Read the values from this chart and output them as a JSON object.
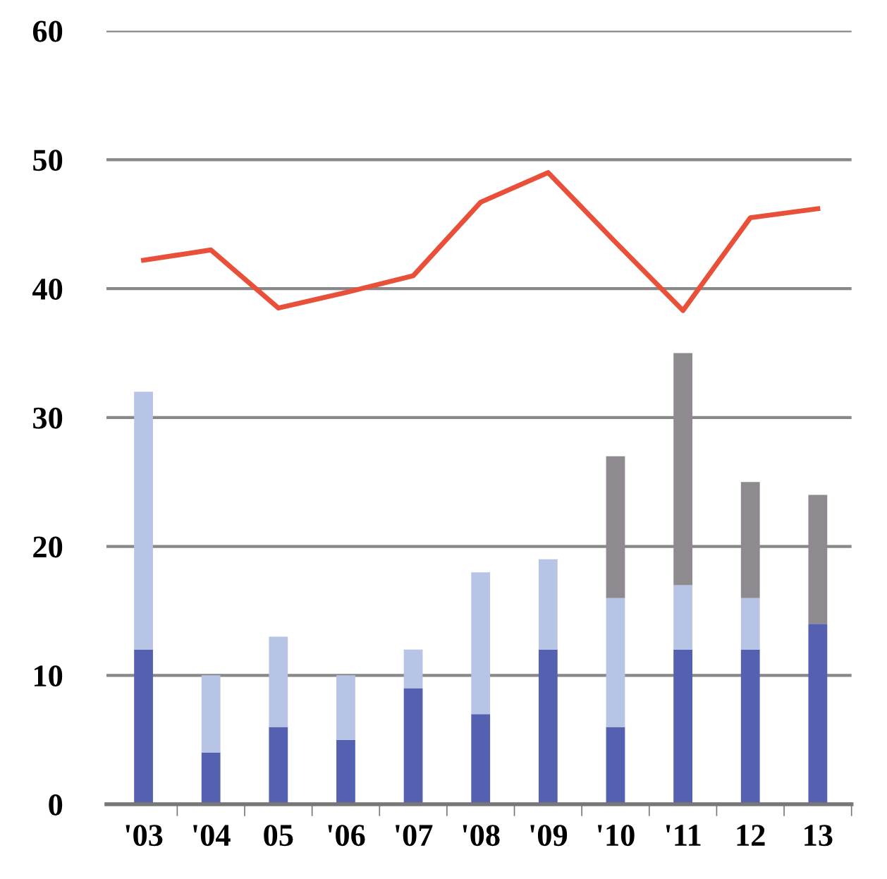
{
  "chart_data": {
    "type": "bar",
    "stacked": true,
    "categories": [
      "'03",
      "'04",
      "05",
      "'06",
      "'07",
      "'08",
      "'09",
      "'10",
      "'11",
      "12",
      "13"
    ],
    "series": [
      {
        "color": "#5460b0",
        "values": [
          12,
          4,
          6,
          5,
          9,
          7,
          12,
          6,
          12,
          12,
          14
        ]
      },
      {
        "color": "#b8c4e6",
        "values": [
          20,
          6,
          7,
          5,
          3,
          11,
          7,
          10,
          5,
          4,
          0
        ]
      },
      {
        "color": "#8f8a90",
        "values": [
          0,
          0,
          0,
          0,
          0,
          0,
          0,
          11,
          18,
          9,
          10
        ]
      },
      {
        "type": "line",
        "color": "#e8503a",
        "values": [
          42.2,
          43,
          38.5,
          39.7,
          41,
          46.7,
          49,
          43.6,
          38.3,
          45.5,
          46.2
        ]
      }
    ],
    "ylim": [
      0,
      60
    ],
    "yticks": [
      0,
      10,
      20,
      30,
      40,
      50,
      60
    ],
    "grid": "y"
  }
}
